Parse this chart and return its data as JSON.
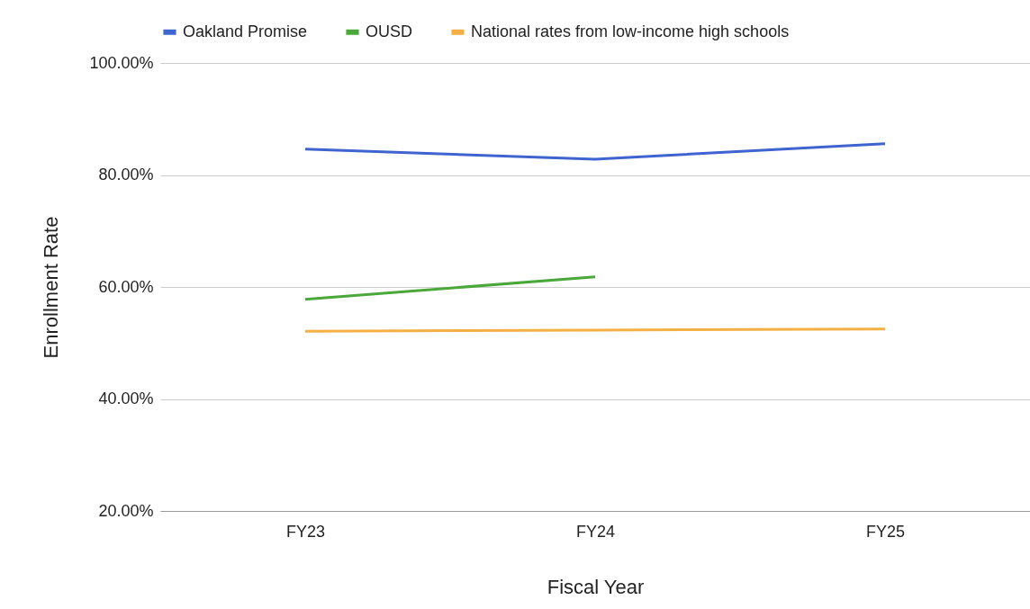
{
  "chart_data": {
    "type": "line",
    "xlabel": "Fiscal Year",
    "ylabel": "Enrollment Rate",
    "categories": [
      "FY23",
      "FY24",
      "FY25"
    ],
    "series": [
      {
        "name": "Oakland Promise",
        "color": "#3f64cf",
        "values": [
          84.6,
          82.8,
          85.6
        ]
      },
      {
        "name": "OUSD",
        "color": "#4aa83a",
        "values": [
          57.8,
          61.8,
          null
        ]
      },
      {
        "name": "National rates from low-income high schools",
        "color": "#f4b044",
        "values": [
          52.1,
          52.3,
          52.5
        ]
      }
    ],
    "ylim": [
      20,
      100
    ],
    "yticks": [
      {
        "value": 20,
        "label": "20.00%"
      },
      {
        "value": 40,
        "label": "40.00%"
      },
      {
        "value": 60,
        "label": "60.00%"
      },
      {
        "value": 80,
        "label": "80.00%"
      },
      {
        "value": 100,
        "label": "100.00%"
      }
    ],
    "grid": "y",
    "legend": "top"
  }
}
